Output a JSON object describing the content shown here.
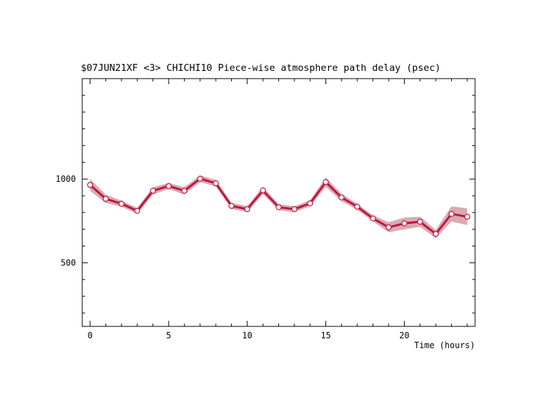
{
  "chart_data": {
    "type": "line",
    "title": "$07JUN21XF <3>  CHICHI10  Piece-wise atmosphere path delay (psec)",
    "xlabel": "Time (hours)",
    "ylabel": "",
    "xlim": [
      -0.5,
      24.5
    ],
    "ylim": [
      120,
      1600
    ],
    "x_ticks": [
      0,
      5,
      10,
      15,
      20
    ],
    "y_ticks": [
      500,
      1000
    ],
    "grid": false,
    "colors": {
      "line": "#c0143c",
      "band": "#d9aab2",
      "marker_fill": "#ffffff",
      "axis": "#000000"
    },
    "series": [
      {
        "x": [
          0,
          1,
          2,
          3,
          4,
          5,
          6,
          7,
          8,
          9,
          10,
          11,
          12,
          13,
          14,
          15,
          16,
          17,
          18,
          19,
          20,
          21,
          22,
          23,
          24
        ],
        "values": [
          965,
          882,
          853,
          810,
          930,
          958,
          930,
          1002,
          975,
          840,
          820,
          932,
          832,
          820,
          855,
          982,
          890,
          835,
          765,
          712,
          735,
          745,
          672,
          792,
          775
        ],
        "error": [
          35,
          25,
          18,
          18,
          22,
          18,
          22,
          20,
          20,
          18,
          18,
          22,
          18,
          18,
          18,
          28,
          22,
          18,
          18,
          30,
          35,
          30,
          25,
          45,
          50
        ]
      }
    ]
  }
}
